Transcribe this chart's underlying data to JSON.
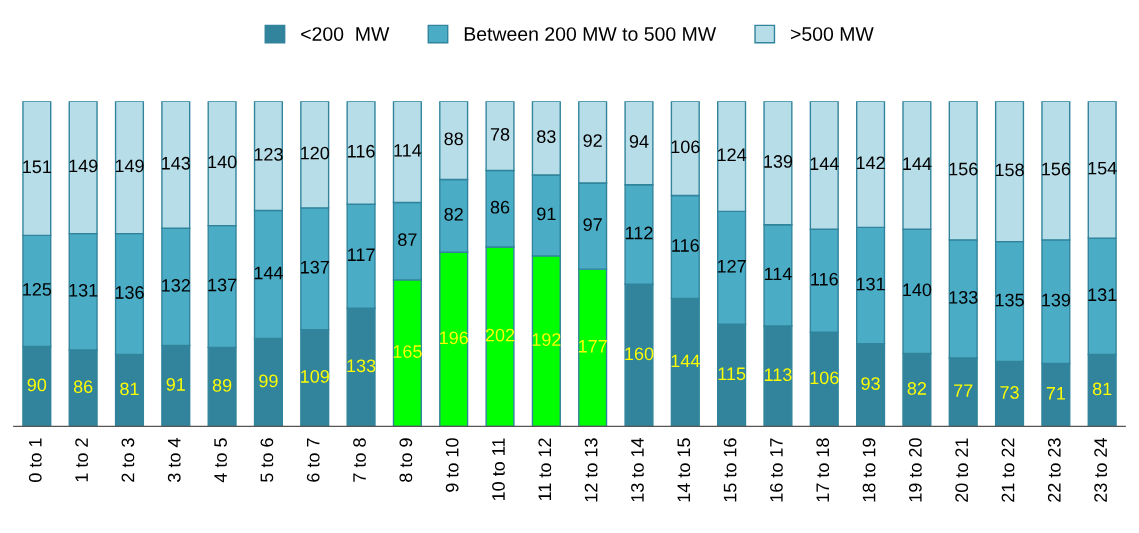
{
  "chart_data": {
    "type": "bar",
    "stacked": true,
    "data_labels": true,
    "legend": "top",
    "grid": false,
    "categories": [
      "0 to 1",
      "1 to 2",
      "2 to 3",
      "3 to 4",
      "4 to 5",
      "5 to 6",
      "6 to 7",
      "7 to 8",
      "8 to 9",
      "9 to 10",
      "10 to 11",
      "11 to 12",
      "12 to 13",
      "13 to 14",
      "14 to 15",
      "15 to 16",
      "16 to 17",
      "17 to 18",
      "18 to 19",
      "19 to 20",
      "20 to 21",
      "21 to 22",
      "22 to 23",
      "23 to 24"
    ],
    "series": [
      {
        "name": "<200  MW",
        "color": "#31849b",
        "colors": [
          "#31849b",
          "#31849b",
          "#31849b",
          "#31849b",
          "#31849b",
          "#31849b",
          "#31849b",
          "#31849b",
          "#00ff00",
          "#00ff00",
          "#00ff00",
          "#00ff00",
          "#00ff00",
          "#31849b",
          "#31849b",
          "#31849b",
          "#31849b",
          "#31849b",
          "#31849b",
          "#31849b",
          "#31849b",
          "#31849b",
          "#31849b",
          "#31849b"
        ],
        "values": [
          90,
          86,
          81,
          91,
          89,
          99,
          109,
          133,
          165,
          196,
          202,
          192,
          177,
          160,
          144,
          115,
          113,
          106,
          93,
          82,
          77,
          73,
          71,
          81
        ]
      },
      {
        "name": "Between 200 MW to 500 MW",
        "color": "#4bacc6",
        "values": [
          125,
          131,
          136,
          132,
          137,
          144,
          137,
          117,
          87,
          82,
          86,
          91,
          97,
          112,
          116,
          127,
          114,
          116,
          131,
          140,
          133,
          135,
          139,
          131
        ]
      },
      {
        "name": ">500 MW",
        "color": "#b7dde8",
        "values": [
          151,
          149,
          149,
          143,
          140,
          123,
          120,
          116,
          114,
          88,
          78,
          83,
          92,
          94,
          106,
          124,
          139,
          144,
          142,
          144,
          156,
          158,
          156,
          154
        ]
      }
    ]
  }
}
